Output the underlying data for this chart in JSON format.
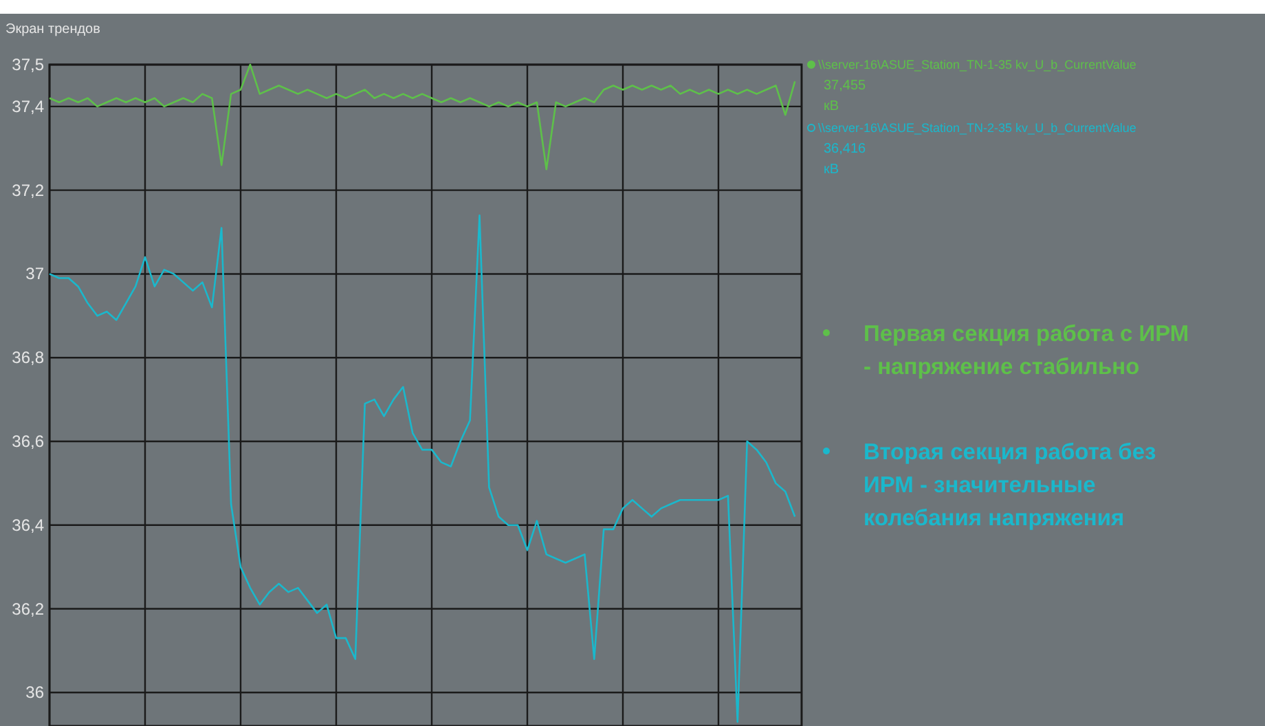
{
  "chart_data": {
    "type": "line",
    "title": "Экран трендов",
    "categories": [
      null,
      null,
      null,
      null,
      null,
      null,
      null,
      null,
      null,
      null,
      null,
      null,
      null,
      null,
      null,
      null,
      null,
      null,
      null,
      null,
      null,
      null,
      null,
      null,
      null,
      null,
      null,
      null,
      null,
      null,
      null,
      null,
      null,
      null,
      null,
      null,
      null,
      null,
      null,
      null,
      null,
      null,
      null,
      null,
      null,
      null,
      null,
      null,
      null,
      null,
      null,
      null,
      null,
      null,
      null,
      null,
      null,
      null,
      null,
      null,
      null,
      null,
      null,
      null,
      null,
      null,
      null,
      null,
      null,
      null,
      null,
      null,
      null,
      null,
      null,
      null,
      null,
      null,
      null
    ],
    "ylim": [
      35.92,
      37.5
    ],
    "yticks": [
      {
        "value": 37.5,
        "label": "37,5"
      },
      {
        "value": 37.4,
        "label": "37,4"
      },
      {
        "value": 37.2,
        "label": "37,2"
      },
      {
        "value": 37,
        "label": "37"
      },
      {
        "value": 36.8,
        "label": "36,8"
      },
      {
        "value": 36.6,
        "label": "36,6"
      },
      {
        "value": 36.4,
        "label": "36,4"
      },
      {
        "value": 36.2,
        "label": "36,2"
      },
      {
        "value": 36,
        "label": "36"
      }
    ],
    "grid": true,
    "legend": "right",
    "marker": "none",
    "line_style": "solid",
    "series": [
      {
        "name": "\\\\server-16\\ASUE_Station_TN-1-35 kv_U_b_CurrentValue",
        "color": "#5ec04a",
        "values": [
          37.42,
          37.41,
          37.42,
          37.41,
          37.42,
          37.4,
          37.41,
          37.42,
          37.41,
          37.42,
          37.41,
          37.42,
          37.4,
          37.41,
          37.42,
          37.41,
          37.43,
          37.42,
          37.26,
          37.43,
          37.44,
          37.5,
          37.43,
          37.44,
          37.45,
          37.44,
          37.43,
          37.44,
          37.43,
          37.42,
          37.43,
          37.42,
          37.43,
          37.44,
          37.42,
          37.43,
          37.42,
          37.43,
          37.42,
          37.43,
          37.42,
          37.41,
          37.42,
          37.41,
          37.42,
          37.41,
          37.4,
          37.41,
          37.4,
          37.41,
          37.4,
          37.41,
          37.25,
          37.41,
          37.4,
          37.41,
          37.42,
          37.41,
          37.44,
          37.45,
          37.44,
          37.45,
          37.44,
          37.45,
          37.44,
          37.45,
          37.43,
          37.44,
          37.43,
          37.44,
          37.43,
          37.44,
          37.43,
          37.44,
          37.43,
          37.44,
          37.45,
          37.38,
          37.46
        ]
      },
      {
        "name": "\\\\server-16\\ASUE_Station_TN-2-35 kv_U_b_CurrentValue",
        "color": "#1ab8cc",
        "values": [
          37.0,
          36.99,
          36.99,
          36.97,
          36.93,
          36.9,
          36.91,
          36.89,
          36.93,
          36.97,
          37.04,
          36.97,
          37.01,
          37.0,
          36.98,
          36.96,
          36.98,
          36.92,
          37.11,
          36.45,
          36.3,
          36.25,
          36.21,
          36.24,
          36.26,
          36.24,
          36.25,
          36.22,
          36.19,
          36.21,
          36.13,
          36.13,
          36.08,
          36.69,
          36.7,
          36.66,
          36.7,
          36.73,
          36.62,
          36.58,
          36.58,
          36.55,
          36.54,
          36.6,
          36.65,
          37.14,
          36.49,
          36.42,
          36.4,
          36.4,
          36.34,
          36.41,
          36.33,
          36.32,
          36.31,
          36.32,
          36.33,
          36.08,
          36.39,
          36.39,
          36.44,
          36.46,
          36.44,
          36.42,
          36.44,
          36.45,
          36.46,
          36.46,
          36.46,
          36.46,
          36.46,
          36.47,
          35.93,
          36.6,
          36.58,
          36.55,
          36.5,
          36.48,
          36.42
        ]
      }
    ],
    "annotations": [
      "37,455",
      "кВ",
      "36,416",
      "кВ",
      "Первая секция работа с ИРМ - напряжение стабильно",
      "Вторая секция работа без ИРМ - значительные колебания напряжения"
    ]
  }
}
